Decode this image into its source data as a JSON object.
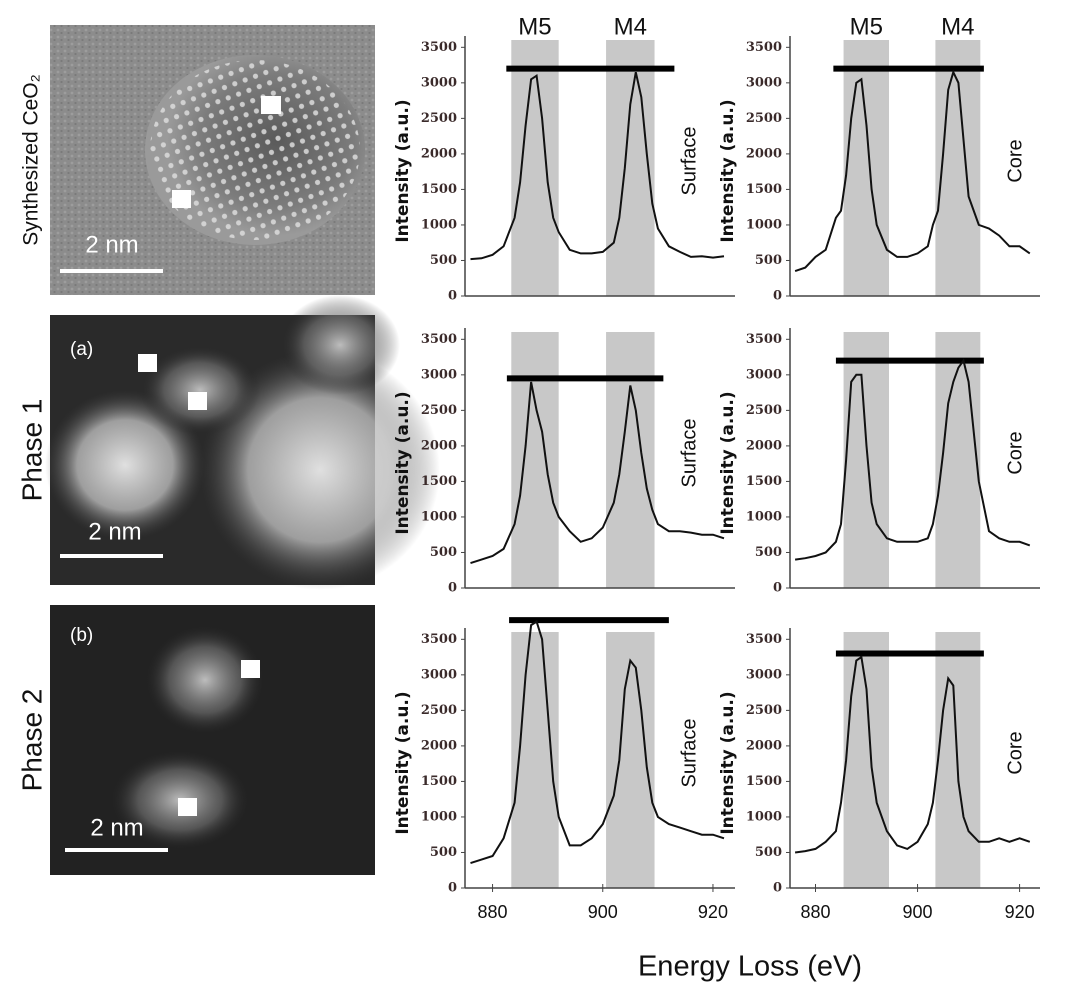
{
  "figure": {
    "xlabel": "Energy Loss (eV)"
  },
  "micrographs": [
    {
      "label": "Synthesized CeO₂",
      "scale_bar": "2 nm"
    },
    {
      "label": "Phase 1",
      "tag": "(a)",
      "scale_bar": "2 nm"
    },
    {
      "label": "Phase 2",
      "tag": "(b)",
      "scale_bar": "2 nm"
    }
  ],
  "chart_data": [
    {
      "type": "line",
      "ylabel": "Intensity (a.u.)",
      "region": "Surface",
      "color": "#111111",
      "x": [
        876,
        878,
        880,
        882,
        884,
        885,
        886,
        887,
        888,
        889,
        890,
        891,
        892,
        894,
        896,
        898,
        900,
        902,
        903,
        904,
        905,
        906,
        907,
        908,
        909,
        910,
        912,
        914,
        916,
        918,
        920,
        922
      ],
      "values": [
        520,
        530,
        580,
        700,
        1100,
        1600,
        2400,
        3050,
        3100,
        2500,
        1600,
        1100,
        900,
        650,
        600,
        600,
        620,
        750,
        1100,
        1800,
        2700,
        3150,
        2800,
        2000,
        1300,
        950,
        700,
        620,
        550,
        560,
        540,
        560
      ],
      "bands": [
        {
          "label": "M5",
          "range": [
            883.4,
            892
          ]
        },
        {
          "label": "M4",
          "range": [
            900.6,
            909.4
          ]
        }
      ],
      "reference": {
        "y": 3200,
        "x": [
          882.5,
          913
        ]
      },
      "xlim": [
        875,
        924
      ],
      "ylim": [
        0,
        3800
      ],
      "yticks": [
        0,
        500,
        1000,
        1500,
        2000,
        2500,
        3000,
        3500
      ]
    },
    {
      "type": "line",
      "ylabel": "Intensity (a.u.)",
      "region": "Core",
      "color": "#111111",
      "x": [
        876,
        878,
        880,
        882,
        884,
        885,
        886,
        887,
        888,
        889,
        890,
        891,
        892,
        894,
        896,
        898,
        900,
        902,
        903,
        904,
        905,
        906,
        907,
        908,
        909,
        910,
        912,
        914,
        916,
        918,
        920,
        922
      ],
      "values": [
        350,
        400,
        550,
        650,
        1100,
        1200,
        1700,
        2500,
        3000,
        3050,
        2400,
        1500,
        1000,
        650,
        550,
        550,
        600,
        700,
        1000,
        1200,
        2000,
        2900,
        3150,
        3000,
        2200,
        1400,
        1000,
        950,
        850,
        700,
        700,
        600
      ],
      "bands": [
        {
          "label": "M5",
          "range": [
            885.5,
            894.4
          ]
        },
        {
          "label": "M4",
          "range": [
            903.5,
            912.3
          ]
        }
      ],
      "reference": {
        "y": 3200,
        "x": [
          883.5,
          913
        ]
      },
      "xlim": [
        875,
        924
      ],
      "ylim": [
        0,
        3800
      ],
      "yticks": [
        0,
        500,
        1000,
        1500,
        2000,
        2500,
        3000,
        3500
      ]
    },
    {
      "type": "line",
      "ylabel": "Intensity (a.u.)",
      "region": "Surface",
      "color": "#111111",
      "x": [
        876,
        878,
        880,
        882,
        884,
        885,
        886,
        887,
        888,
        889,
        890,
        891,
        892,
        894,
        896,
        898,
        900,
        902,
        903,
        904,
        905,
        906,
        907,
        908,
        909,
        910,
        912,
        914,
        916,
        918,
        920,
        922
      ],
      "values": [
        350,
        400,
        450,
        550,
        900,
        1300,
        2000,
        2900,
        2500,
        2200,
        1600,
        1200,
        1000,
        800,
        650,
        700,
        850,
        1200,
        1600,
        2200,
        2850,
        2500,
        1900,
        1400,
        1100,
        900,
        800,
        800,
        780,
        750,
        750,
        700
      ],
      "bands": [
        {
          "range": [
            883.4,
            892
          ]
        },
        {
          "range": [
            900.6,
            909.4
          ]
        }
      ],
      "reference": {
        "y": 2950,
        "x": [
          882.6,
          911
        ]
      },
      "xlim": [
        875,
        924
      ],
      "ylim": [
        0,
        3800
      ],
      "yticks": [
        0,
        500,
        1000,
        1500,
        2000,
        2500,
        3000,
        3500
      ]
    },
    {
      "type": "line",
      "ylabel": "Intensity (a.u.)",
      "region": "Core",
      "color": "#111111",
      "x": [
        876,
        878,
        880,
        882,
        884,
        885,
        886,
        887,
        888,
        889,
        890,
        891,
        892,
        894,
        896,
        898,
        900,
        902,
        903,
        904,
        905,
        906,
        907,
        908,
        909,
        910,
        912,
        914,
        916,
        918,
        920,
        922
      ],
      "values": [
        400,
        420,
        450,
        500,
        650,
        900,
        1800,
        2900,
        3000,
        3000,
        2000,
        1200,
        900,
        700,
        650,
        650,
        650,
        700,
        900,
        1300,
        1900,
        2600,
        2900,
        3100,
        3200,
        2900,
        1500,
        800,
        700,
        650,
        650,
        600
      ],
      "bands": [
        {
          "range": [
            885.5,
            894.4
          ]
        },
        {
          "range": [
            903.5,
            912.3
          ]
        }
      ],
      "reference": {
        "y": 3200,
        "x": [
          884,
          913
        ]
      },
      "xlim": [
        875,
        924
      ],
      "ylim": [
        0,
        3800
      ],
      "yticks": [
        0,
        500,
        1000,
        1500,
        2000,
        2500,
        3000,
        3500
      ]
    },
    {
      "type": "line",
      "ylabel": "Intensity (a.u.)",
      "region": "Surface",
      "color": "#111111",
      "x": [
        876,
        878,
        880,
        882,
        884,
        885,
        886,
        887,
        888,
        889,
        890,
        891,
        892,
        894,
        896,
        898,
        900,
        902,
        903,
        904,
        905,
        906,
        907,
        908,
        909,
        910,
        912,
        914,
        916,
        918,
        920,
        922
      ],
      "values": [
        350,
        400,
        450,
        700,
        1200,
        2000,
        3000,
        3700,
        3750,
        3500,
        2500,
        1500,
        1000,
        600,
        600,
        700,
        900,
        1300,
        1800,
        2800,
        3200,
        3100,
        2500,
        1700,
        1200,
        1000,
        900,
        850,
        800,
        750,
        750,
        700
      ],
      "bands": [
        {
          "range": [
            883.4,
            892
          ]
        },
        {
          "range": [
            900.6,
            909.4
          ]
        }
      ],
      "reference": {
        "y": 3770,
        "x": [
          883,
          912
        ]
      },
      "xlim": [
        875,
        924
      ],
      "ylim": [
        0,
        3800
      ],
      "yticks": [
        0,
        500,
        1000,
        1500,
        2000,
        2500,
        3000,
        3500
      ],
      "xticks": [
        880,
        900,
        920
      ]
    },
    {
      "type": "line",
      "ylabel": "Intensity (a.u.)",
      "region": "Core",
      "color": "#111111",
      "x": [
        876,
        878,
        880,
        882,
        884,
        885,
        886,
        887,
        888,
        889,
        890,
        891,
        892,
        894,
        896,
        898,
        900,
        902,
        903,
        904,
        905,
        906,
        907,
        908,
        909,
        910,
        912,
        914,
        916,
        918,
        920,
        922
      ],
      "values": [
        500,
        520,
        550,
        650,
        800,
        1200,
        1800,
        2700,
        3200,
        3250,
        2800,
        1700,
        1200,
        800,
        600,
        550,
        650,
        900,
        1200,
        1800,
        2500,
        2950,
        2850,
        1500,
        1000,
        800,
        650,
        650,
        700,
        650,
        700,
        650
      ],
      "bands": [
        {
          "range": [
            885.5,
            894.4
          ]
        },
        {
          "range": [
            903.5,
            912.3
          ]
        }
      ],
      "reference": {
        "y": 3300,
        "x": [
          884,
          913
        ]
      },
      "xlim": [
        875,
        924
      ],
      "ylim": [
        0,
        3800
      ],
      "yticks": [
        0,
        500,
        1000,
        1500,
        2000,
        2500,
        3000,
        3500
      ],
      "xticks": [
        880,
        900,
        920
      ]
    }
  ]
}
